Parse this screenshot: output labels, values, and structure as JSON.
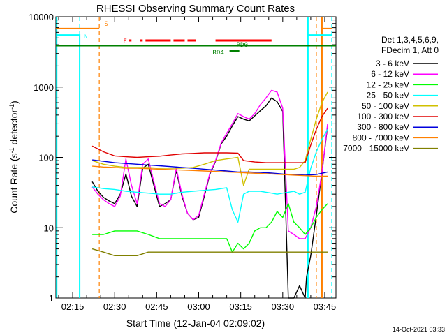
{
  "chart_data": {
    "type": "line",
    "title": "RHESSI Observing Summary Count Rates",
    "xlabel": "Start Time (12-Jan-04 02:09:02)",
    "ylabel_main": "Count Rate (s",
    "ylabel_sup": "-1",
    "ylabel_mid": " detector",
    "ylabel_sup2": "-1",
    "ylabel_end": ")",
    "yscale": "log",
    "ylim": [
      1,
      10000
    ],
    "xlim_min": [
      129,
      229
    ],
    "x_ticks": [
      "02:15",
      "02:30",
      "02:45",
      "03:00",
      "03:15",
      "03:30",
      "03:45"
    ],
    "x_tick_min": [
      135,
      150,
      165,
      180,
      195,
      210,
      225
    ],
    "y_ticks": [
      "1",
      "10",
      "100",
      "1000",
      "10000"
    ],
    "y_tick_vals": [
      1,
      10,
      100,
      1000,
      10000
    ],
    "legend": {
      "header1": "Det 1,3,4,5,6,9,",
      "header2": "FDecim 1, Att 0",
      "placement": "right"
    },
    "series": [
      {
        "name": "3 - 6 keV",
        "color": "#000000",
        "x": [
          142,
          144,
          146,
          148,
          150,
          152,
          154,
          156,
          158,
          160,
          162,
          164,
          166,
          168,
          170,
          172,
          174,
          176,
          178,
          180,
          182,
          184,
          186,
          188,
          190,
          192,
          194,
          196,
          198,
          200,
          202,
          204,
          206,
          208,
          210,
          212,
          214,
          216,
          218,
          218.5,
          220,
          222,
          224,
          226
        ],
        "y": [
          45,
          33,
          27,
          24,
          22,
          30,
          58,
          28,
          20,
          70,
          80,
          40,
          20,
          22,
          25,
          65,
          28,
          16,
          13,
          14,
          28,
          58,
          88,
          155,
          200,
          280,
          380,
          350,
          330,
          390,
          460,
          540,
          700,
          620,
          450,
          1,
          1,
          1.5,
          1,
          2,
          4,
          15,
          60,
          280
        ]
      },
      {
        "name": "6 - 12 keV",
        "color": "#ff00ff",
        "x": [
          142,
          144,
          146,
          148,
          150,
          152,
          154,
          156,
          158,
          160,
          162,
          164,
          166,
          168,
          170,
          172,
          174,
          176,
          178,
          180,
          182,
          184,
          186,
          188,
          190,
          192,
          194,
          196,
          198,
          200,
          202,
          204,
          206,
          208,
          210,
          212,
          214,
          216,
          218,
          220,
          222,
          224,
          226
        ],
        "y": [
          38,
          30,
          25,
          22,
          20,
          28,
          95,
          40,
          22,
          80,
          95,
          45,
          22,
          20,
          25,
          70,
          30,
          16,
          13,
          15,
          30,
          60,
          90,
          160,
          220,
          300,
          420,
          380,
          350,
          420,
          560,
          700,
          900,
          850,
          500,
          9,
          8,
          7,
          7,
          10,
          20,
          60,
          300
        ]
      },
      {
        "name": "12 - 25 keV",
        "color": "#00ff00",
        "x": [
          142,
          146,
          150,
          154,
          158,
          162,
          166,
          170,
          174,
          178,
          182,
          186,
          190,
          192,
          194,
          196,
          198,
          200,
          202,
          204,
          206,
          208,
          210,
          212,
          214,
          216,
          218,
          220,
          222,
          224,
          226
        ],
        "y": [
          8,
          8,
          9,
          9,
          9,
          8,
          7,
          7,
          7,
          7,
          7,
          7,
          7,
          4.5,
          6,
          5,
          6,
          9,
          10,
          10,
          12,
          17,
          14,
          22,
          12,
          10,
          8,
          10,
          14,
          18,
          22
        ]
      },
      {
        "name": "25 - 50 keV",
        "color": "#00ffff",
        "x": [
          142,
          146,
          150,
          154,
          158,
          162,
          166,
          170,
          174,
          178,
          182,
          186,
          190,
          192,
          194,
          196,
          198,
          200,
          202,
          204,
          206,
          208,
          210,
          212,
          214,
          216,
          218,
          220,
          222,
          224,
          226
        ],
        "y": [
          38,
          36,
          35,
          33,
          32,
          31,
          30,
          30,
          32,
          33,
          34,
          35,
          37,
          18,
          12,
          30,
          33,
          33,
          33,
          32,
          31,
          30,
          31,
          32,
          33,
          30,
          32,
          70,
          120,
          180,
          250
        ]
      },
      {
        "name": "50 - 100 keV",
        "color": "#d0c000",
        "x": [
          142,
          146,
          150,
          154,
          158,
          162,
          166,
          170,
          174,
          178,
          182,
          186,
          190,
          194,
          196,
          198,
          200,
          202,
          204,
          206,
          208,
          210,
          212,
          214,
          216,
          218,
          220,
          222,
          224,
          226
        ],
        "y": [
          90,
          80,
          75,
          72,
          72,
          72,
          70,
          70,
          70,
          72,
          80,
          90,
          95,
          100,
          40,
          68,
          68,
          68,
          68,
          68,
          68,
          68,
          68,
          68,
          72,
          90,
          180,
          350,
          600,
          850
        ]
      },
      {
        "name": "100 - 300 keV",
        "color": "#e00000",
        "x": [
          142,
          146,
          150,
          154,
          158,
          162,
          166,
          170,
          174,
          178,
          182,
          186,
          190,
          194,
          196,
          198,
          200,
          202,
          204,
          206,
          208,
          210,
          212,
          214,
          216,
          218,
          220,
          222,
          224,
          226
        ],
        "y": [
          145,
          120,
          105,
          102,
          100,
          102,
          104,
          108,
          112,
          114,
          116,
          116,
          116,
          115,
          90,
          88,
          86,
          85,
          84,
          84,
          84,
          84,
          84,
          84,
          84,
          84,
          150,
          250,
          380,
          500
        ]
      },
      {
        "name": "300 - 800 keV",
        "color": "#0000dd",
        "x": [
          142,
          146,
          150,
          154,
          158,
          162,
          166,
          170,
          174,
          178,
          182,
          186,
          190,
          194,
          198,
          202,
          206,
          210,
          214,
          218,
          222,
          226
        ],
        "y": [
          92,
          88,
          84,
          82,
          80,
          78,
          76,
          74,
          72,
          70,
          68,
          66,
          64,
          62,
          62,
          61,
          60,
          58,
          57,
          56,
          57,
          62
        ]
      },
      {
        "name": "800 - 7000 keV",
        "color": "#ff8000",
        "x": [
          142,
          146,
          150,
          154,
          158,
          162,
          166,
          170,
          174,
          178,
          182,
          186,
          190,
          194,
          198,
          202,
          206,
          210,
          214,
          218,
          222,
          226
        ],
        "y": [
          75,
          73,
          72,
          70,
          70,
          69,
          68,
          67,
          66,
          65,
          64,
          63,
          62,
          61,
          60,
          59,
          58,
          57,
          56,
          55,
          54,
          54
        ]
      },
      {
        "name": "7000 - 15000 keV",
        "color": "#808000",
        "x": [
          142,
          146,
          150,
          154,
          158,
          162,
          166,
          170,
          174,
          178,
          182,
          186,
          190,
          194,
          198,
          202,
          206,
          210,
          214,
          218,
          222,
          226
        ],
        "y": [
          5,
          4.5,
          4,
          4,
          4,
          4.5,
          4.5,
          4.5,
          4.5,
          4.5,
          4.5,
          4.5,
          4.5,
          4.5,
          4.5,
          4.5,
          4.5,
          4.5,
          4.5,
          4.5,
          4.5,
          4.5
        ]
      }
    ],
    "flags": [
      {
        "label": "S",
        "color": "#ff8000"
      },
      {
        "label": "N",
        "color": "#00ffff"
      },
      {
        "label": "F",
        "color": "#ff0000"
      },
      {
        "label": "RD0",
        "color": "#008000"
      },
      {
        "label": "RD4",
        "color": "#008000"
      }
    ]
  },
  "footer": {
    "timestamp": "14-Oct-2021 03:33"
  }
}
